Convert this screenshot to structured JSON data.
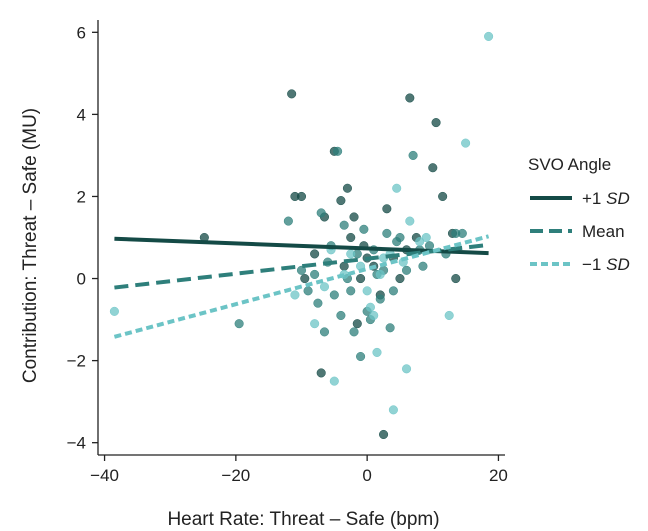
{
  "chart_data": {
    "type": "scatter",
    "xlabel": "Heart Rate: Threat – Safe (bpm)",
    "ylabel": "Contribution: Threat – Safe (MU)",
    "xlim": [
      -41,
      21
    ],
    "ylim": [
      -4.3,
      6.3
    ],
    "xticks": [
      -40,
      -20,
      0,
      20
    ],
    "yticks": [
      -4,
      -2,
      0,
      2,
      4,
      6
    ],
    "xtick_labels": [
      "−40",
      "−20",
      "0",
      "20"
    ],
    "ytick_labels": [
      "−4",
      "−2",
      "0",
      "2",
      "4",
      "6"
    ],
    "grid": false,
    "legend": {
      "title": "SVO Angle",
      "placement": "right"
    },
    "series": [
      {
        "name_main": "+1 ",
        "name_italic": "SD",
        "color": "#144a46",
        "line_style": "solid",
        "line": [
          [
            -38.5,
            0.97
          ],
          [
            18.5,
            0.62
          ]
        ],
        "points": [
          [
            -24.8,
            1.0
          ],
          [
            -11.5,
            4.5
          ],
          [
            -11.0,
            2.0
          ],
          [
            -10.0,
            2.0
          ],
          [
            -9.5,
            0.0
          ],
          [
            -8.0,
            0.6
          ],
          [
            -7.0,
            -2.3
          ],
          [
            -6.5,
            1.5
          ],
          [
            -5.0,
            3.1
          ],
          [
            -4.0,
            1.9
          ],
          [
            -3.5,
            0.3
          ],
          [
            -3.0,
            2.2
          ],
          [
            -2.5,
            1.0
          ],
          [
            -2.0,
            1.5
          ],
          [
            -1.5,
            -1.1
          ],
          [
            -1.0,
            0.0
          ],
          [
            -0.5,
            0.8
          ],
          [
            0.0,
            0.5
          ],
          [
            1.0,
            0.3
          ],
          [
            2.0,
            -0.4
          ],
          [
            2.5,
            -3.8
          ],
          [
            3.0,
            1.7
          ],
          [
            4.0,
            0.5
          ],
          [
            5.0,
            0.0
          ],
          [
            6.0,
            0.7
          ],
          [
            6.5,
            4.4
          ],
          [
            7.5,
            1.0
          ],
          [
            10.0,
            2.7
          ],
          [
            10.5,
            3.8
          ],
          [
            11.5,
            2.0
          ],
          [
            13.0,
            1.1
          ],
          [
            13.5,
            0.0
          ]
        ]
      },
      {
        "name_main": "Mean",
        "name_italic": "",
        "color": "#2e7f7b",
        "line_style": "dashed",
        "line": [
          [
            -38.5,
            -0.22
          ],
          [
            18.5,
            0.82
          ]
        ],
        "points": [
          [
            -19.5,
            -1.1
          ],
          [
            -12.0,
            1.4
          ],
          [
            -10.0,
            0.2
          ],
          [
            -9.0,
            -0.3
          ],
          [
            -8.0,
            0.1
          ],
          [
            -7.5,
            -0.6
          ],
          [
            -7.0,
            1.6
          ],
          [
            -6.5,
            -1.3
          ],
          [
            -6.0,
            0.4
          ],
          [
            -5.5,
            0.8
          ],
          [
            -5.0,
            -0.4
          ],
          [
            -4.5,
            3.1
          ],
          [
            -4.0,
            -0.9
          ],
          [
            -3.5,
            1.3
          ],
          [
            -3.0,
            0.0
          ],
          [
            -2.5,
            -0.3
          ],
          [
            -2.0,
            -1.3
          ],
          [
            -1.5,
            0.6
          ],
          [
            -1.0,
            -1.9
          ],
          [
            -0.5,
            1.2
          ],
          [
            0.0,
            -0.8
          ],
          [
            0.5,
            -1.0
          ],
          [
            1.0,
            0.7
          ],
          [
            1.5,
            0.1
          ],
          [
            2.0,
            -0.5
          ],
          [
            2.5,
            0.2
          ],
          [
            3.0,
            1.1
          ],
          [
            3.5,
            -1.2
          ],
          [
            4.0,
            -0.3
          ],
          [
            4.5,
            0.9
          ],
          [
            5.0,
            1.0
          ],
          [
            6.0,
            0.2
          ],
          [
            7.0,
            3.0
          ],
          [
            8.0,
            0.7
          ],
          [
            8.5,
            0.3
          ],
          [
            9.5,
            0.8
          ],
          [
            12.0,
            0.6
          ],
          [
            13.5,
            1.1
          ],
          [
            14.5,
            1.1
          ]
        ]
      },
      {
        "name_main": "−1 ",
        "name_italic": "SD",
        "color": "#6cc4c6",
        "line_style": "dotted",
        "line": [
          [
            -38.5,
            -1.42
          ],
          [
            18.5,
            1.03
          ]
        ],
        "points": [
          [
            -38.5,
            -0.8
          ],
          [
            -11.0,
            -0.4
          ],
          [
            -8.0,
            -1.1
          ],
          [
            -6.5,
            -0.2
          ],
          [
            -5.5,
            0.7
          ],
          [
            -5.0,
            -2.5
          ],
          [
            -3.5,
            0.1
          ],
          [
            -2.5,
            0.6
          ],
          [
            -1.0,
            0.3
          ],
          [
            0.0,
            -0.3
          ],
          [
            0.5,
            -0.7
          ],
          [
            1.0,
            -0.9
          ],
          [
            1.5,
            -1.8
          ],
          [
            2.0,
            0.1
          ],
          [
            2.5,
            0.5
          ],
          [
            3.5,
            0.6
          ],
          [
            4.0,
            -3.2
          ],
          [
            4.5,
            2.2
          ],
          [
            5.5,
            0.4
          ],
          [
            6.0,
            -2.2
          ],
          [
            6.5,
            1.4
          ],
          [
            8.0,
            0.9
          ],
          [
            9.0,
            1.0
          ],
          [
            12.5,
            -0.9
          ],
          [
            15.0,
            3.3
          ],
          [
            18.5,
            5.9
          ]
        ]
      }
    ]
  }
}
